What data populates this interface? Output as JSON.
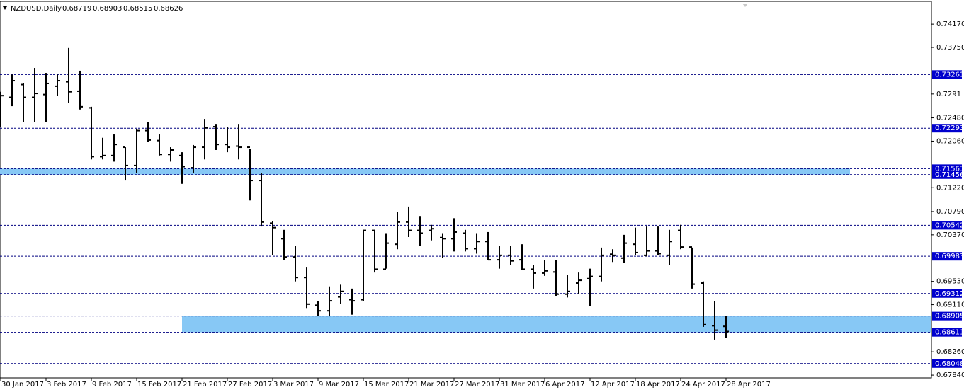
{
  "chart_data": {
    "type": "ohlc",
    "title": "NZDUSD,Daily",
    "categories": [
      "30 Jan 2017",
      null,
      null,
      null,
      "3 Feb 2017",
      null,
      null,
      null,
      "9 Feb 2017",
      null,
      null,
      null,
      "15 Feb 2017",
      null,
      null,
      null,
      "21 Feb 2017",
      null,
      null,
      null,
      "27 Feb 2017",
      null,
      null,
      null,
      "3 Mar 2017",
      null,
      null,
      null,
      "9 Mar 2017",
      null,
      null,
      null,
      "15 Mar 2017",
      null,
      null,
      null,
      "21 Mar 2017",
      null,
      null,
      null,
      "27 Mar 2017",
      null,
      null,
      null,
      "31 Mar 2017",
      null,
      null,
      null,
      "6 Apr 2017",
      null,
      null,
      null,
      "12 Apr 2017",
      null,
      null,
      null,
      "18 Apr 2017",
      null,
      null,
      null,
      "24 Apr 2017",
      null,
      null,
      null,
      "28 Apr 2017"
    ],
    "open": [
      0.7288,
      0.7285,
      0.7308,
      0.7285,
      0.729,
      0.7305,
      0.7313,
      0.7296,
      0.7266,
      0.7178,
      0.718,
      0.7195,
      0.7162,
      0.7225,
      0.7207,
      0.7182,
      0.718,
      0.7158,
      0.7195,
      0.7232,
      0.72,
      0.7197,
      0.7195,
      0.7135,
      0.7058,
      0.703,
      0.6997,
      0.696,
      0.691,
      0.69,
      0.6925,
      0.692,
      0.692,
      0.7045,
      0.6975,
      0.702,
      0.706,
      0.7045,
      0.7045,
      0.7032,
      0.703,
      0.704,
      0.7012,
      0.7025,
      0.6992,
      0.7,
      0.6992,
      0.6975,
      0.6968,
      0.697,
      0.693,
      0.695,
      0.6958,
      0.6962,
      0.7002,
      0.6995,
      0.702,
      0.7,
      0.7008,
      0.7,
      0.7045,
      0.7015,
      0.695,
      0.6873,
      0.68719
    ],
    "high": [
      0.7295,
      0.7326,
      0.731,
      0.7338,
      0.7329,
      0.7326,
      0.7374,
      0.7333,
      0.7268,
      0.7212,
      0.7218,
      0.7195,
      0.7227,
      0.7241,
      0.7218,
      0.7195,
      0.7186,
      0.7199,
      0.7246,
      0.7237,
      0.7231,
      0.7237,
      0.7192,
      0.7148,
      0.7062,
      0.7046,
      0.7017,
      0.6978,
      0.6918,
      0.6944,
      0.6947,
      0.694,
      0.7046,
      0.7046,
      0.704,
      0.7078,
      0.7088,
      0.7071,
      0.7055,
      0.704,
      0.7067,
      0.7046,
      0.704,
      0.7042,
      0.7017,
      0.7017,
      0.702,
      0.6982,
      0.6991,
      0.6991,
      0.6965,
      0.6969,
      0.6976,
      0.7014,
      0.7011,
      0.7037,
      0.705,
      0.7052,
      0.7052,
      0.7046,
      0.7055,
      0.7014,
      0.6953,
      0.6918,
      0.68903
    ],
    "low": [
      0.7231,
      0.7269,
      0.7241,
      0.7241,
      0.7241,
      0.7288,
      0.7275,
      0.7263,
      0.7173,
      0.7173,
      0.7169,
      0.7135,
      0.7148,
      0.7205,
      0.718,
      0.7169,
      0.7129,
      0.7148,
      0.7173,
      0.719,
      0.7186,
      0.7173,
      0.7099,
      0.7052,
      0.7001,
      0.6991,
      0.6953,
      0.6905,
      0.689,
      0.689,
      0.6912,
      0.6893,
      0.6918,
      0.6969,
      0.6976,
      0.7011,
      0.7033,
      0.7017,
      0.7027,
      0.6995,
      0.7007,
      0.7007,
      0.7003,
      0.6991,
      0.6976,
      0.6982,
      0.6973,
      0.694,
      0.6963,
      0.6927,
      0.6924,
      0.6931,
      0.6909,
      0.6953,
      0.6988,
      0.6986,
      0.7001,
      0.6998,
      0.7001,
      0.6982,
      0.7011,
      0.694,
      0.6871,
      0.6848,
      0.68515
    ],
    "close": [
      0.7288,
      0.7315,
      0.7285,
      0.7292,
      0.731,
      0.7315,
      0.7295,
      0.7268,
      0.7178,
      0.718,
      0.72,
      0.7162,
      0.7225,
      0.7208,
      0.7182,
      0.719,
      0.716,
      0.7195,
      0.723,
      0.72,
      0.7195,
      0.7195,
      0.7135,
      0.706,
      0.705,
      0.6997,
      0.696,
      0.6912,
      0.69,
      0.6918,
      0.6935,
      0.6918,
      0.7045,
      0.6975,
      0.7022,
      0.706,
      0.7045,
      0.704,
      0.7048,
      0.703,
      0.7042,
      0.7012,
      0.7025,
      0.6992,
      0.7,
      0.699,
      0.6975,
      0.6968,
      0.6972,
      0.693,
      0.6935,
      0.6955,
      0.6962,
      0.7,
      0.7,
      0.7022,
      0.7005,
      0.7008,
      0.7003,
      0.7025,
      0.7015,
      0.6948,
      0.6875,
      0.6865,
      0.68626
    ],
    "color": "#000000",
    "ylim": [
      0.6779,
      0.7458
    ],
    "yticks": [
      {
        "value": 0.7417,
        "label": "0.74170"
      },
      {
        "value": 0.7375,
        "label": "0.73750"
      },
      0.7291,
      {
        "value": 0.7248,
        "label": "0.72480"
      },
      {
        "value": 0.7206,
        "label": "0.72060"
      },
      {
        "value": 0.7122,
        "label": "0.71220"
      },
      {
        "value": 0.7079,
        "label": "0.70790"
      },
      {
        "value": 0.7037,
        "label": "0.70370"
      },
      {
        "value": 0.6953,
        "label": "0.69530"
      },
      {
        "value": 0.6911,
        "label": "0.69110"
      },
      {
        "value": 0.6826,
        "label": "0.68260"
      },
      {
        "value": 0.6784,
        "label": "0.67840"
      }
    ],
    "hlines": [
      0.73261,
      0.72293,
      0.71563,
      0.71456,
      0.70542,
      0.69983,
      0.69312,
      0.68905,
      0.68611,
      0.68048
    ]
  }
}
